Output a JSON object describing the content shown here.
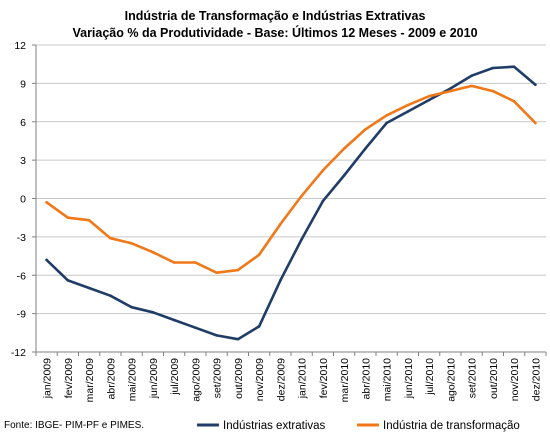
{
  "source": "Fonte: IBGE- PIM-PF e PIMES.",
  "chart_data": {
    "type": "line",
    "title": "Indústria de Transformação e Indústrias Extrativas",
    "subtitle": "Variação % da Produtividade - Base: Últimos 12 Meses - 2009 e 2010",
    "xlabel": "",
    "ylabel": "",
    "categories": [
      "jan/2009",
      "fev/2009",
      "mar/2009",
      "abr/2009",
      "mai/2009",
      "jun/2009",
      "jul/2009",
      "ago/2009",
      "set/2009",
      "out/2009",
      "nov/2009",
      "dez/2009",
      "jan/2010",
      "fev/2010",
      "mar/2010",
      "abr/2010",
      "mai/2010",
      "jun/2010",
      "jul/2010",
      "ago/2010",
      "set/2010",
      "out/2010",
      "nov/2010",
      "dez/2010"
    ],
    "ylim": [
      -12,
      12
    ],
    "yticks": [
      -12,
      -9,
      -6,
      -3,
      0,
      3,
      6,
      9,
      12
    ],
    "grid": "horizontal",
    "legend": "bottom",
    "series": [
      {
        "name": "Indústrias extrativas",
        "color": "#1f3d66",
        "values": [
          -4.8,
          -6.4,
          -7.0,
          -7.6,
          -8.5,
          -8.9,
          -9.5,
          -10.1,
          -10.7,
          -11.0,
          -10.0,
          -6.4,
          -3.2,
          -0.2,
          1.8,
          3.9,
          5.9,
          6.8,
          7.7,
          8.6,
          9.6,
          10.2,
          10.3,
          8.9
        ]
      },
      {
        "name": "Indústria de transformação",
        "color": "#f07818",
        "values": [
          -0.3,
          -1.5,
          -1.7,
          -3.1,
          -3.5,
          -4.2,
          -5.0,
          -5.0,
          -5.8,
          -5.6,
          -4.4,
          -2.0,
          0.2,
          2.2,
          3.9,
          5.4,
          6.5,
          7.3,
          8.0,
          8.4,
          8.8,
          8.4,
          7.6,
          5.9
        ]
      }
    ]
  }
}
